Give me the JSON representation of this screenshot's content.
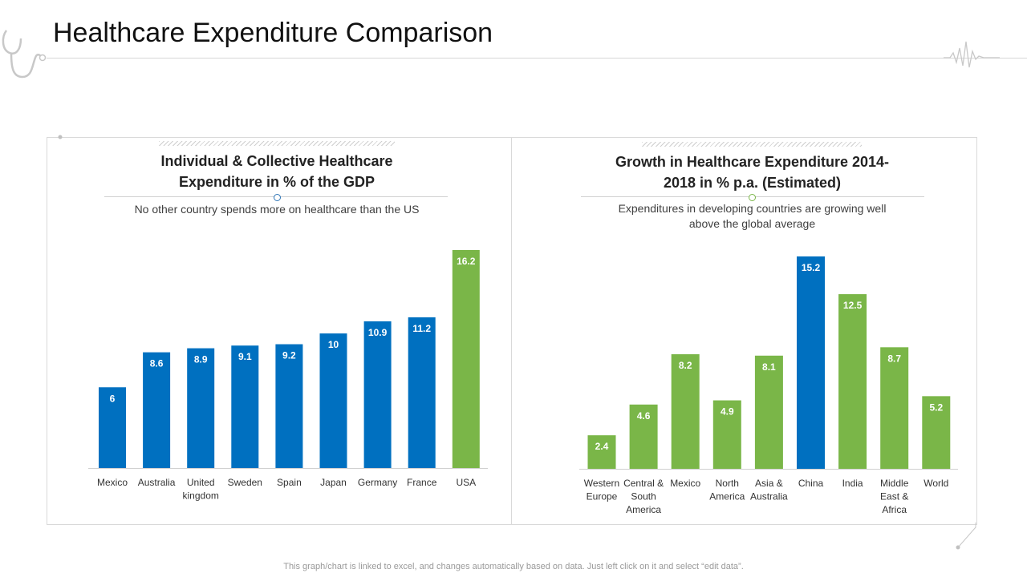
{
  "page": {
    "title": "Healthcare Expenditure Comparison",
    "footer": "This graph/chart is linked to excel, and changes automatically based on data. Just left click on it and select “edit data”."
  },
  "colors": {
    "blue": "#0070c0",
    "green": "#7ab648"
  },
  "panels": [
    {
      "title_line1": "Individual  & Collective Healthcare",
      "title_line2": "Expenditure in % of the GDP",
      "subtitle_line1": "No other country spends more on healthcare than the US"
    },
    {
      "title_line1": "Growth in Healthcare Expenditure 2014-",
      "title_line2": "2018 in % p.a. (Estimated)",
      "subtitle_line1": "Expenditures in developing countries are growing well",
      "subtitle_line2": "above the global average"
    }
  ],
  "chart_data": [
    {
      "type": "bar",
      "title": "Individual  & Collective Healthcare Expenditure in % of the GDP",
      "categories": [
        "Mexico",
        "Australia",
        "United kingdom",
        "Sweden",
        "Spain",
        "Japan",
        "Germany",
        "France",
        "USA"
      ],
      "category_lines": [
        [
          "Mexico"
        ],
        [
          "Australia"
        ],
        [
          "United",
          "kingdom"
        ],
        [
          "Sweden"
        ],
        [
          "Spain"
        ],
        [
          "Japan"
        ],
        [
          "Germany"
        ],
        [
          "France"
        ],
        [
          "USA"
        ]
      ],
      "values": [
        6,
        8.6,
        8.9,
        9.1,
        9.2,
        10,
        10.9,
        11.2,
        16.2
      ],
      "labels": [
        "6",
        "8.6",
        "8.9",
        "9.1",
        "9.2",
        "10",
        "10.9",
        "11.2",
        "16.2"
      ],
      "highlight": [
        "blue",
        "blue",
        "blue",
        "blue",
        "blue",
        "blue",
        "blue",
        "blue",
        "green"
      ],
      "ylim": [
        0,
        16.2
      ],
      "grid": false,
      "legend": "none"
    },
    {
      "type": "bar",
      "title": "Growth in Healthcare Expenditure 2014-2018 in % p.a. (Estimated)",
      "categories": [
        "Western Europe",
        "Central & South America",
        "Mexico",
        "North America",
        "Asia & Australia",
        "China",
        "India",
        "Middle East & Africa",
        "World"
      ],
      "category_lines": [
        [
          "Western",
          "Europe"
        ],
        [
          "Central &",
          "South",
          "America"
        ],
        [
          "Mexico"
        ],
        [
          "North",
          "America"
        ],
        [
          "Asia &",
          "Australia"
        ],
        [
          "China"
        ],
        [
          "India"
        ],
        [
          "Middle",
          "East &",
          "Africa"
        ],
        [
          "World"
        ]
      ],
      "values": [
        2.4,
        4.6,
        8.2,
        4.9,
        8.1,
        15.2,
        12.5,
        8.7,
        5.2
      ],
      "labels": [
        "2.4",
        "4.6",
        "8.2",
        "4.9",
        "8.1",
        "15.2",
        "12.5",
        "8.7",
        "5.2"
      ],
      "highlight": [
        "green",
        "green",
        "green",
        "green",
        "green",
        "blue",
        "green",
        "green",
        "green"
      ],
      "ylim": [
        0,
        15.2
      ],
      "grid": false,
      "legend": "none"
    }
  ]
}
